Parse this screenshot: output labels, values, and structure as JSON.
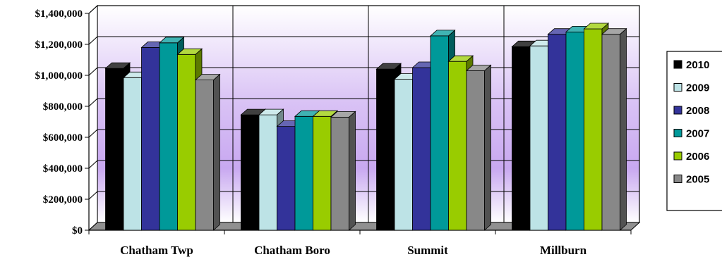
{
  "chart_data": {
    "type": "bar",
    "categories": [
      "Chatham Twp",
      "Chatham Boro",
      "Summit",
      "Millburn"
    ],
    "series": [
      {
        "name": "2010",
        "color": "#000000",
        "values": [
          1045000,
          745000,
          1040000,
          1185000
        ]
      },
      {
        "name": "2009",
        "color": "#bde3e6",
        "values": [
          985000,
          745000,
          975000,
          1190000
        ]
      },
      {
        "name": "2008",
        "color": "#33339a",
        "values": [
          1180000,
          670000,
          1050000,
          1265000
        ]
      },
      {
        "name": "2007",
        "color": "#009999",
        "values": [
          1210000,
          735000,
          1255000,
          1280000
        ]
      },
      {
        "name": "2006",
        "color": "#99cc00",
        "values": [
          1135000,
          735000,
          1090000,
          1300000
        ]
      },
      {
        "name": "2005",
        "color": "#888888",
        "values": [
          970000,
          730000,
          1030000,
          1265000
        ]
      }
    ],
    "yticks": [
      "$0",
      "$200,000",
      "$400,000",
      "$600,000",
      "$800,000",
      "$1,000,000",
      "$1,200,000",
      "$1,400,000"
    ],
    "ylim": [
      0,
      1400000
    ],
    "grid": true,
    "legend_position": "right"
  }
}
